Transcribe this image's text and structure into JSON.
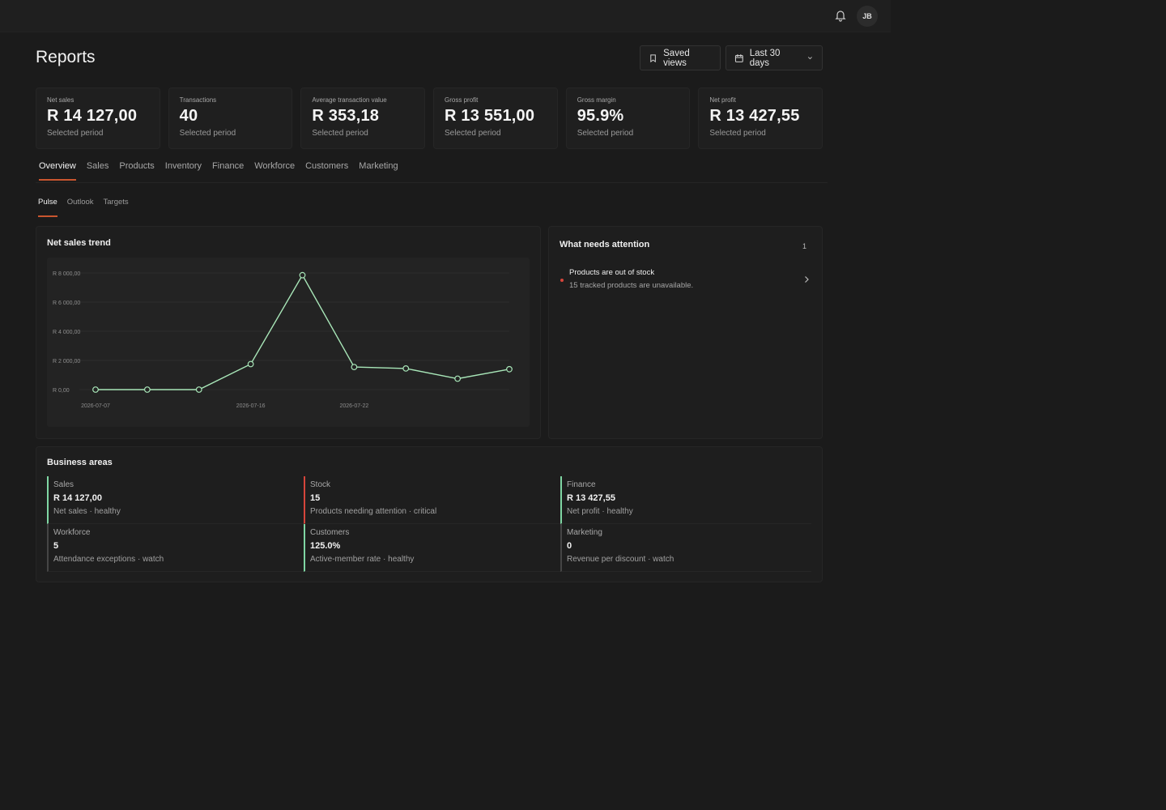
{
  "header": {
    "bell_icon": "bell-icon",
    "avatar_initials": "JB"
  },
  "page": {
    "title": "Reports",
    "saved_views_label": "Saved views",
    "date_range_label": "Last 30 days"
  },
  "kpis": [
    {
      "label": "Net sales",
      "value": "R 14 127,00",
      "sub": "Selected period"
    },
    {
      "label": "Transactions",
      "value": "40",
      "sub": "Selected period"
    },
    {
      "label": "Average transaction value",
      "value": "R 353,18",
      "sub": "Selected period"
    },
    {
      "label": "Gross profit",
      "value": "R 13 551,00",
      "sub": "Selected period"
    },
    {
      "label": "Gross margin",
      "value": "95.9%",
      "sub": "Selected period"
    },
    {
      "label": "Net profit",
      "value": "R 13 427,55",
      "sub": "Selected period"
    }
  ],
  "tabs": [
    "Overview",
    "Sales",
    "Products",
    "Inventory",
    "Finance",
    "Workforce",
    "Customers",
    "Marketing"
  ],
  "subtabs": [
    "Pulse",
    "Outlook",
    "Targets"
  ],
  "trend": {
    "title": "Net sales trend"
  },
  "chart_data": {
    "type": "line",
    "title": "Net sales trend",
    "x": [
      "2026-07-07",
      "2026-07-10",
      "2026-07-13",
      "2026-07-16",
      "2026-07-19",
      "2026-07-22",
      "2026-07-25",
      "2026-07-28",
      "2026-07-31"
    ],
    "x_tick_labels": [
      "2026-07-07",
      "2026-07-16",
      "2026-07-22"
    ],
    "y_tick_labels": [
      "R 8 000,00",
      "R 6 000,00",
      "R 4 000,00",
      "R 2 000,00",
      "R 0,00"
    ],
    "y_ticks": [
      8000,
      6000,
      4000,
      2000,
      0
    ],
    "series": [
      {
        "values": [
          0,
          0,
          0,
          1750,
          7850,
          1550,
          1450,
          750,
          1400
        ]
      }
    ],
    "ylim": [
      0,
      8000
    ],
    "grid": true,
    "line_color": "#a8e6b8"
  },
  "attention": {
    "title": "What needs attention",
    "count": "1",
    "items": [
      {
        "title": "Products are out of stock",
        "desc": "15 tracked products are unavailable."
      }
    ]
  },
  "areas": {
    "title": "Business areas",
    "items": [
      {
        "name": "Sales",
        "value": "R 14 127,00",
        "sub": "Net sales · healthy",
        "status": "healthy"
      },
      {
        "name": "Stock",
        "value": "15",
        "sub": "Products needing attention · critical",
        "status": "critical"
      },
      {
        "name": "Finance",
        "value": "R 13 427,55",
        "sub": "Net profit · healthy",
        "status": "healthy"
      },
      {
        "name": "Workforce",
        "value": "5",
        "sub": "Attendance exceptions · watch",
        "status": "watch"
      },
      {
        "name": "Customers",
        "value": "125.0%",
        "sub": "Active-member rate · healthy",
        "status": "healthy"
      },
      {
        "name": "Marketing",
        "value": "0",
        "sub": "Revenue per discount · watch",
        "status": "watch"
      }
    ]
  }
}
